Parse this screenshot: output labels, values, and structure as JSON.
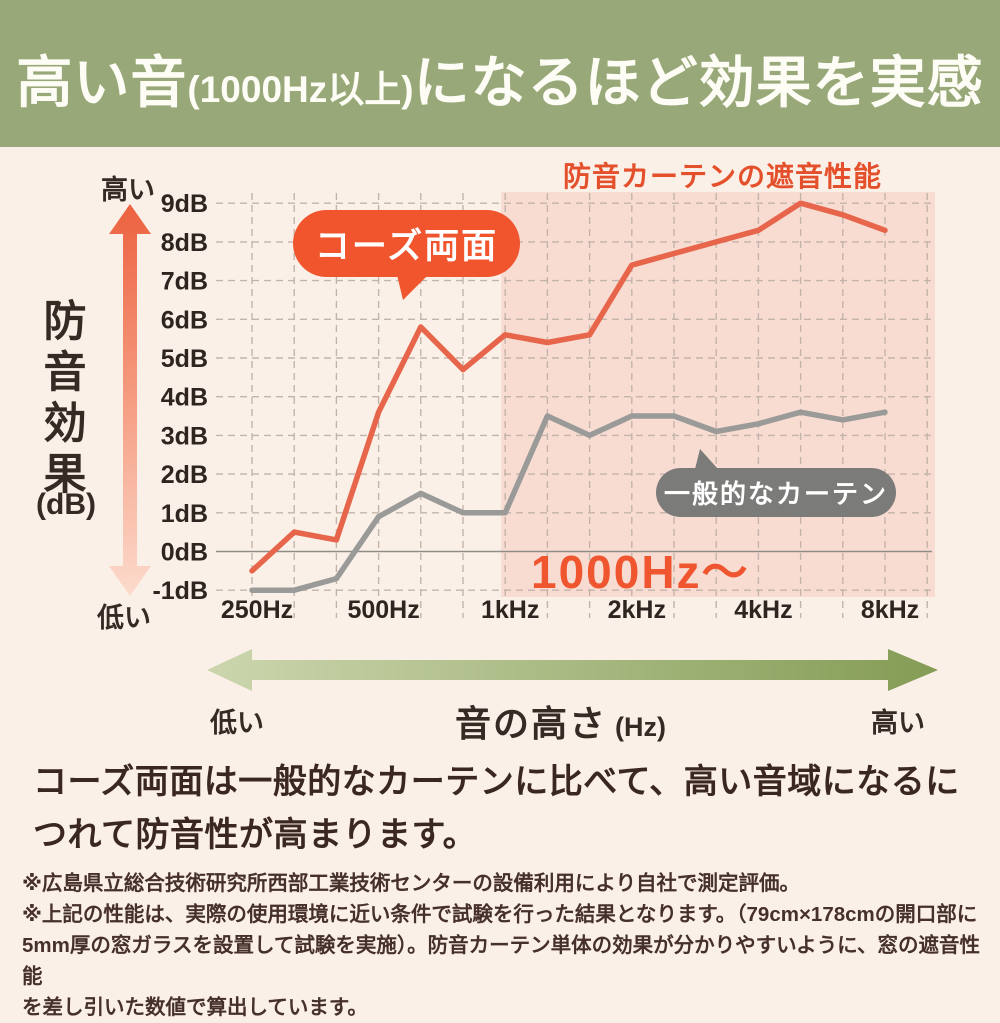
{
  "banner": {
    "title_part1": "高い音",
    "title_part2": "(1000Hz以上)",
    "title_part3": "になるほど効果を実感"
  },
  "chart": {
    "title": "防音カーテンの遮音性能",
    "y_axis_high_label": "高い",
    "y_axis_low_label": "低い",
    "y_axis_title": "防音効果",
    "y_axis_unit": "(dB)",
    "orange_badge_label": "コーズ両面",
    "gray_badge_label": "一般的なカーテン",
    "highlight_text": "1000Hz〜"
  },
  "chart_data": {
    "type": "line",
    "title": "防音カーテンの遮音性能",
    "xlabel": "音の高さ (Hz)",
    "ylabel": "防音効果 (dB)",
    "x": [
      250,
      315,
      400,
      500,
      630,
      800,
      1000,
      1250,
      1600,
      2000,
      2500,
      3150,
      4000,
      5000,
      6300,
      8000
    ],
    "x_tick_labels": [
      "250Hz",
      "500Hz",
      "1kHz",
      "2kHz",
      "4kHz",
      "8kHz"
    ],
    "x_tick_indices": [
      0,
      3,
      6,
      9,
      12,
      15
    ],
    "y_tick_labels": [
      "9dB",
      "8dB",
      "7dB",
      "6dB",
      "5dB",
      "4dB",
      "3dB",
      "2dB",
      "1dB",
      "0dB",
      "-1dB"
    ],
    "ylim": [
      -1,
      9
    ],
    "grid": "dashed",
    "zero_line": "solid",
    "series": [
      {
        "name": "コーズ両面",
        "color": "#e7654a",
        "values": [
          -0.5,
          0.5,
          0.3,
          3.6,
          5.8,
          4.7,
          5.6,
          5.4,
          5.6,
          7.4,
          7.7,
          8.0,
          8.3,
          9.0,
          8.7,
          8.3
        ]
      },
      {
        "name": "一般的なカーテン",
        "color": "#9a9a98",
        "values": [
          -1.0,
          -1.0,
          -0.7,
          0.9,
          1.5,
          1.0,
          1.0,
          3.5,
          3.0,
          3.5,
          3.5,
          3.1,
          3.3,
          3.6,
          3.4,
          3.6
        ]
      }
    ],
    "highlight_region": {
      "from_index": 6,
      "label": "1000Hz〜",
      "color": "#f8dcd2"
    },
    "legend_position": "in-plot-badges"
  },
  "x_axis": {
    "low_label": "低い",
    "title": "音の高さ",
    "unit": "(Hz)",
    "high_label": "高い"
  },
  "description": "コーズ両面は一般的なカーテンに比べて、高い音域になるに\nつれて防音性が高まります。",
  "footnotes": "※広島県立総合技術研究所西部工業技術センターの設備利用により自社で測定評価。\n※上記の性能は、実際の使用環境に近い条件で試験を行った結果となります。（79cm×178cmの開口部に\n5mm厚の窓ガラスを設置して試験を実施）。防音カーテン単体の効果が分かりやすいように、窓の遮音性能\nを差し引いた数値で算出しています。",
  "colors": {
    "banner_green": "#99a878",
    "page_cream": "#fbf0e7",
    "accent_orange": "#f1552e",
    "title_orange": "#e4502c",
    "line_orange": "#e7654a",
    "line_gray": "#9a9a98",
    "badge_gray": "#7b7b79",
    "highlight_pink": "#f8dcd2",
    "text_dark": "#3a2722"
  }
}
